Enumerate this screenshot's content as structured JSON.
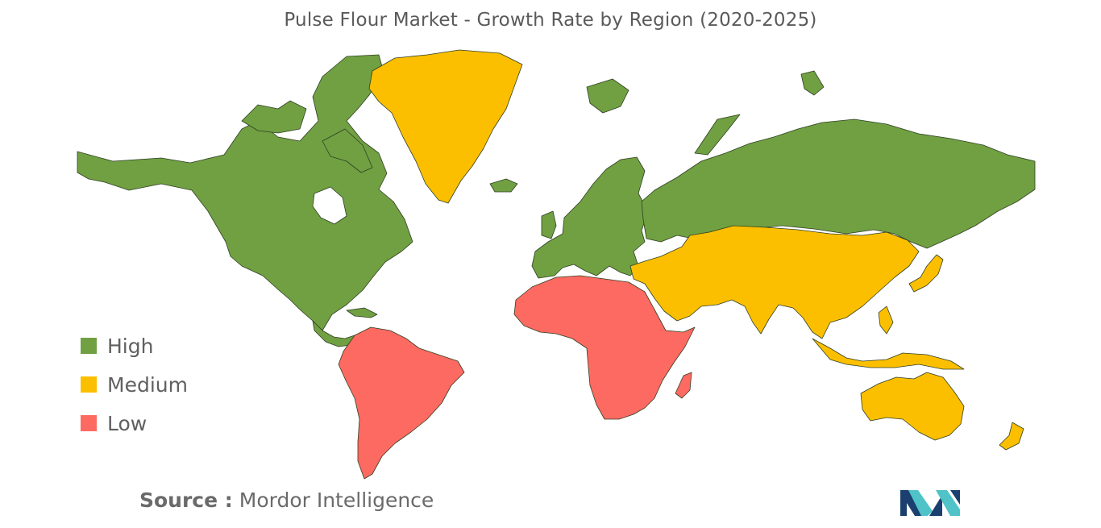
{
  "title": "Pulse Flour Market - Growth Rate by Region (2020-2025)",
  "legend": [
    {
      "label": "High",
      "color": "#70a042"
    },
    {
      "label": "Medium",
      "color": "#fcbf00"
    },
    {
      "label": "Low",
      "color": "#fd6a62"
    }
  ],
  "regions": {
    "north_america": "High",
    "europe": "High",
    "russia": "High",
    "greenland": "Medium",
    "middle_east_asia": "Medium",
    "australia_oceania": "Medium",
    "south_america": "Low",
    "africa": "Low"
  },
  "source": {
    "prefix": "Source :",
    "name": "Mordor Intelligence"
  },
  "logo": {
    "icon": "mordor-intelligence-logo-icon",
    "colors": [
      "#1b3f6e",
      "#4fc3c8"
    ]
  }
}
